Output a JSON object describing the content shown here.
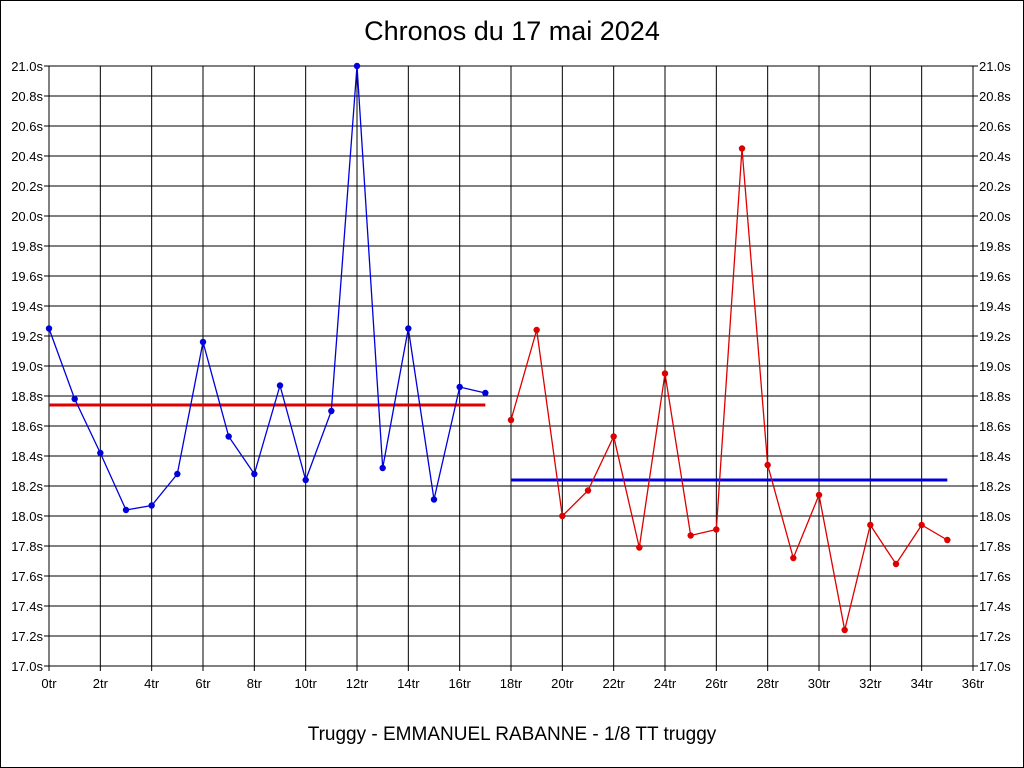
{
  "chart_data": {
    "type": "line",
    "title": "Chronos du 17 mai 2024",
    "subtitle": "Truggy - EMMANUEL RABANNE - 1/8 TT truggy",
    "xlim": [
      0,
      36
    ],
    "ylim": [
      17.0,
      21.0
    ],
    "x_ticks": [
      "0tr",
      "2tr",
      "4tr",
      "6tr",
      "8tr",
      "10tr",
      "12tr",
      "14tr",
      "16tr",
      "18tr",
      "20tr",
      "22tr",
      "24tr",
      "26tr",
      "28tr",
      "30tr",
      "32tr",
      "34tr",
      "36tr"
    ],
    "y_ticks": [
      "17.0s",
      "17.2s",
      "17.4s",
      "17.6s",
      "17.8s",
      "18.0s",
      "18.2s",
      "18.4s",
      "18.6s",
      "18.8s",
      "19.0s",
      "19.2s",
      "19.4s",
      "19.6s",
      "19.8s",
      "20.0s",
      "20.2s",
      "20.4s",
      "20.6s",
      "20.8s",
      "21.0s"
    ],
    "grid": true,
    "series": [
      {
        "color": "#0000dd",
        "x": [
          0,
          1,
          2,
          3,
          4,
          5,
          6,
          7,
          8,
          9,
          10,
          11,
          12,
          13,
          14,
          15,
          16,
          17
        ],
        "values": [
          19.25,
          18.78,
          18.42,
          18.04,
          18.07,
          18.28,
          19.16,
          18.53,
          18.28,
          18.87,
          18.24,
          18.7,
          21.0,
          18.32,
          19.25,
          18.11,
          18.86,
          18.82
        ]
      },
      {
        "color": "#dd0000",
        "x": [
          18,
          19,
          20,
          21,
          22,
          23,
          24,
          25,
          26,
          27,
          28,
          29,
          30,
          31,
          32,
          33,
          34,
          35
        ],
        "values": [
          18.64,
          19.24,
          18.0,
          18.17,
          18.53,
          17.79,
          18.95,
          17.87,
          17.91,
          20.45,
          18.34,
          17.72,
          18.14,
          17.24,
          17.94,
          17.68,
          17.94,
          17.84
        ]
      }
    ],
    "average_lines": [
      {
        "color": "#dd0000",
        "x_start": 0,
        "x_end": 17,
        "value": 18.74
      },
      {
        "color": "#0000dd",
        "x_start": 18,
        "x_end": 35,
        "value": 18.24
      }
    ]
  }
}
